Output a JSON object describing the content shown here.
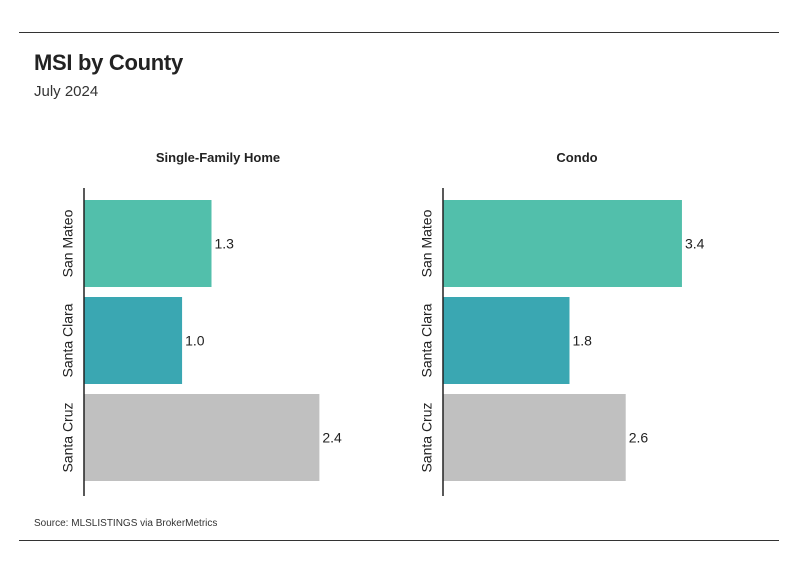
{
  "header": {
    "title": "MSI by County",
    "subtitle": "July 2024"
  },
  "footer": {
    "source": "Source:  MLSLISTINGS via BrokerMetrics"
  },
  "colors": {
    "san_mateo": "#52bfab",
    "santa_clara": "#3aa7b2",
    "santa_cruz": "#c0c0c0",
    "axis": "#222222"
  },
  "chart_data": [
    {
      "type": "bar",
      "orientation": "horizontal",
      "title": "Single-Family Home",
      "categories": [
        "San Mateo",
        "Santa Clara",
        "Santa Cruz"
      ],
      "values": [
        1.3,
        1.0,
        2.4
      ],
      "labels": [
        "1.3",
        "1.0",
        "2.4"
      ],
      "xlim": [
        0,
        2.6
      ],
      "grid": false,
      "legend": "none"
    },
    {
      "type": "bar",
      "orientation": "horizontal",
      "title": "Condo",
      "categories": [
        "San Mateo",
        "Santa Clara",
        "Santa Cruz"
      ],
      "values": [
        3.4,
        1.8,
        2.6
      ],
      "labels": [
        "3.4",
        "1.8",
        "2.6"
      ],
      "xlim": [
        0,
        3.6
      ],
      "grid": false,
      "legend": "none"
    }
  ]
}
